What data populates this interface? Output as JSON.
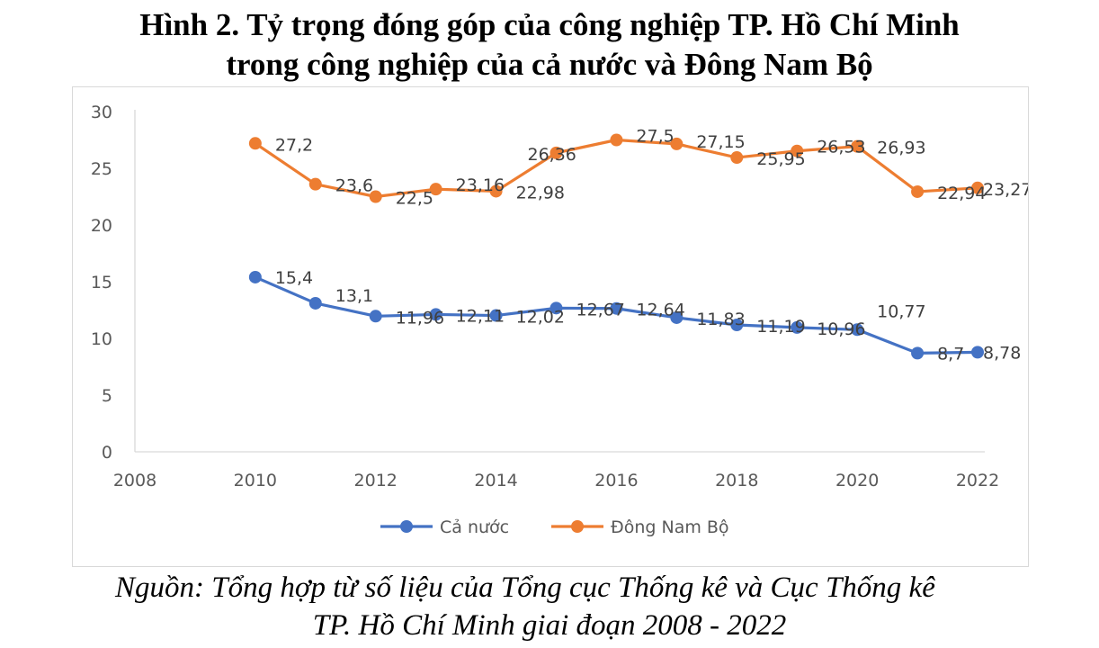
{
  "page": {
    "title_line1": "Hình 2. Tỷ trọng đóng góp của công nghiệp TP. Hồ Chí Minh",
    "title_line2": "trong công nghiệp của cả nước và Đông Nam Bộ",
    "source_line1": "Nguồn: Tổng hợp từ số liệu của Tổng cục Thống kê và Cục Thống kê",
    "source_line2": "TP. Hồ Chí Minh giai đoạn 2008 - 2022"
  },
  "chart_data": {
    "type": "line",
    "title": "",
    "xlabel": "",
    "ylabel": "",
    "xlim": [
      2008,
      2022
    ],
    "ylim": [
      0,
      30
    ],
    "x_ticks": [
      "2008",
      "2010",
      "2012",
      "2014",
      "2016",
      "2018",
      "2020",
      "2022"
    ],
    "y_ticks": [
      "0",
      "5",
      "10",
      "15",
      "20",
      "25",
      "30"
    ],
    "x": [
      2010,
      2011,
      2012,
      2013,
      2014,
      2015,
      2016,
      2017,
      2018,
      2019,
      2020,
      2021,
      2022
    ],
    "grid": false,
    "legend_position": "bottom",
    "series": [
      {
        "name": "Cả nước",
        "color": "#4472c4",
        "values": [
          15.4,
          13.1,
          11.96,
          12.11,
          12.02,
          12.67,
          12.64,
          11.83,
          11.19,
          10.96,
          10.77,
          8.7,
          8.78
        ],
        "labels": [
          "15,4",
          "13,1",
          "11,96",
          "12,11",
          "12,02",
          "12,67",
          "12,64",
          "11,83",
          "11,19",
          "10,96",
          "10,77",
          "8,7",
          "8,78"
        ]
      },
      {
        "name": "Đông Nam Bộ",
        "color": "#ed7d31",
        "values": [
          27.2,
          23.6,
          22.5,
          23.16,
          22.98,
          26.36,
          27.5,
          27.15,
          25.95,
          26.53,
          26.93,
          22.94,
          23.27
        ],
        "labels": [
          "27,2",
          "23,6",
          "22,5",
          "23,16",
          "22,98",
          "26,36",
          "27,5",
          "27,15",
          "25,95",
          "26,53",
          "26,93",
          "22,94",
          "23,27"
        ]
      }
    ]
  }
}
